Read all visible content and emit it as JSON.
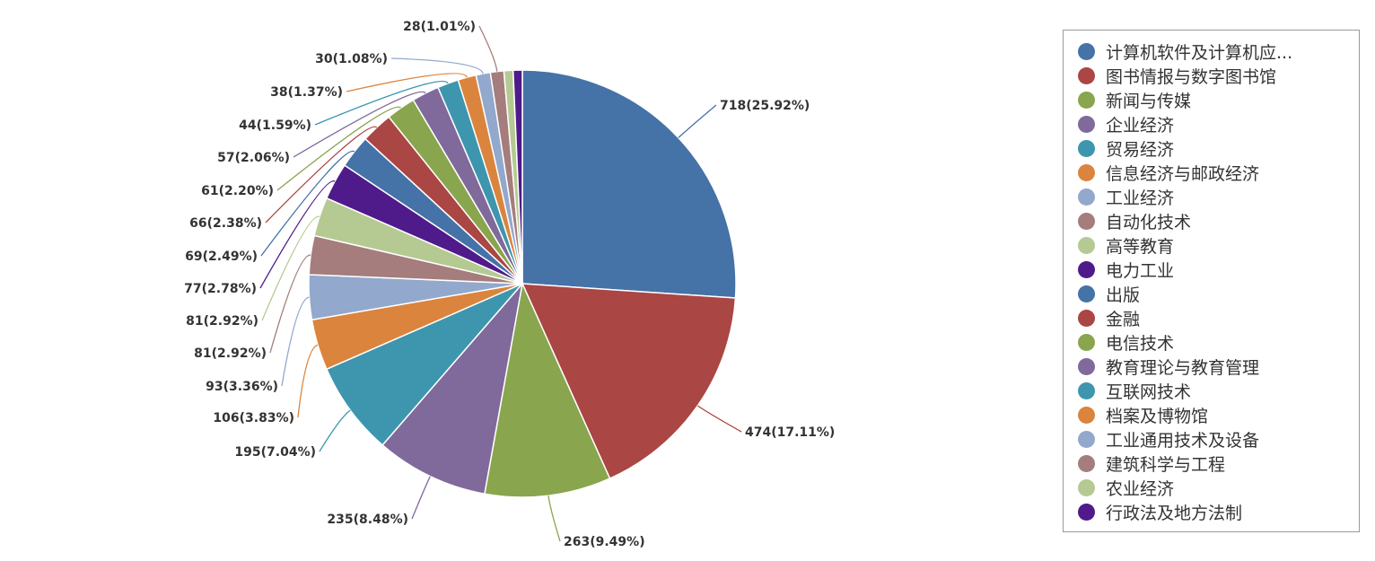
{
  "chart_data": {
    "type": "pie",
    "slices": [
      {
        "name": "计算机软件及计算机应用",
        "legend_label": "计算机软件及计算机应...",
        "value": 718,
        "percent": 25.92,
        "label": "718(25.92%)",
        "color": "#4572a7"
      },
      {
        "name": "图书情报与数字图书馆",
        "legend_label": "图书情报与数字图书馆",
        "value": 474,
        "percent": 17.11,
        "label": "474(17.11%)",
        "color": "#aa4643"
      },
      {
        "name": "新闻与传媒",
        "legend_label": "新闻与传媒",
        "value": 263,
        "percent": 9.49,
        "label": "263(9.49%)",
        "color": "#89a54e"
      },
      {
        "name": "企业经济",
        "legend_label": "企业经济",
        "value": 235,
        "percent": 8.48,
        "label": "235(8.48%)",
        "color": "#80699b"
      },
      {
        "name": "贸易经济",
        "legend_label": "贸易经济",
        "value": 195,
        "percent": 7.04,
        "label": "195(7.04%)",
        "color": "#3d96ae"
      },
      {
        "name": "信息经济与邮政经济",
        "legend_label": "信息经济与邮政经济",
        "value": 106,
        "percent": 3.83,
        "label": "106(3.83%)",
        "color": "#db843d"
      },
      {
        "name": "工业经济",
        "legend_label": "工业经济",
        "value": 93,
        "percent": 3.36,
        "label": "93(3.36%)",
        "color": "#92a8cd"
      },
      {
        "name": "自动化技术",
        "legend_label": "自动化技术",
        "value": 81,
        "percent": 2.92,
        "label": "81(2.92%)",
        "color": "#a47d7c"
      },
      {
        "name": "高等教育",
        "legend_label": "高等教育",
        "value": 81,
        "percent": 2.92,
        "label": "81(2.92%)",
        "color": "#b5ca92"
      },
      {
        "name": "电力工业",
        "legend_label": "电力工业",
        "value": 77,
        "percent": 2.78,
        "label": "77(2.78%)",
        "color": "#4f1a8a"
      },
      {
        "name": "出版",
        "legend_label": "出版",
        "value": 69,
        "percent": 2.49,
        "label": "69(2.49%)",
        "color": "#4572a7"
      },
      {
        "name": "金融",
        "legend_label": "金融",
        "value": 66,
        "percent": 2.38,
        "label": "66(2.38%)",
        "color": "#aa4643"
      },
      {
        "name": "电信技术",
        "legend_label": "电信技术",
        "value": 61,
        "percent": 2.2,
        "label": "61(2.20%)",
        "color": "#89a54e"
      },
      {
        "name": "教育理论与教育管理",
        "legend_label": "教育理论与教育管理",
        "value": 57,
        "percent": 2.06,
        "label": "57(2.06%)",
        "color": "#80699b"
      },
      {
        "name": "互联网技术",
        "legend_label": "互联网技术",
        "value": 44,
        "percent": 1.59,
        "label": "44(1.59%)",
        "color": "#3d96ae"
      },
      {
        "name": "档案及博物馆",
        "legend_label": "档案及博物馆",
        "value": 38,
        "percent": 1.37,
        "label": "38(1.37%)",
        "color": "#db843d"
      },
      {
        "name": "工业通用技术及设备",
        "legend_label": "工业通用技术及设备",
        "value": 30,
        "percent": 1.08,
        "label": "30(1.08%)",
        "color": "#92a8cd"
      },
      {
        "name": "建筑科学与工程",
        "legend_label": "建筑科学与工程",
        "value": 28,
        "percent": 1.01,
        "label": "28(1.01%)",
        "color": "#a47d7c"
      },
      {
        "name": "农业经济",
        "legend_label": "农业经济",
        "value": 19,
        "percent": 0.69,
        "label": "",
        "color": "#b5ca92"
      },
      {
        "name": "行政法及地方法制",
        "legend_label": "行政法及地方法制",
        "value": 19,
        "percent": 0.69,
        "label": "",
        "color": "#4f1a8a"
      }
    ],
    "legend_position": "right"
  }
}
